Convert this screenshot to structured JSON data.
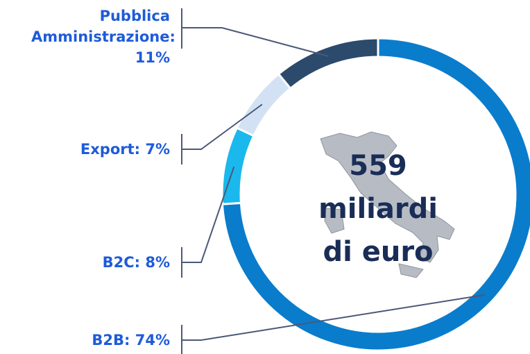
{
  "chart_data": {
    "type": "pie",
    "categories": [
      "B2B",
      "B2C",
      "Export",
      "Pubblica Amministrazione"
    ],
    "labels": [
      "B2B: 74%",
      "B2C: 8%",
      "Export: 7%",
      "Pubblica Amministrazione: 11%"
    ],
    "values": [
      74,
      8,
      7,
      11
    ],
    "colors": [
      "#0a7ccc",
      "#1ab8ec",
      "#d2e2f4",
      "#2c4a6c"
    ],
    "center_text": [
      "559",
      "miliardi",
      "di euro"
    ]
  }
}
